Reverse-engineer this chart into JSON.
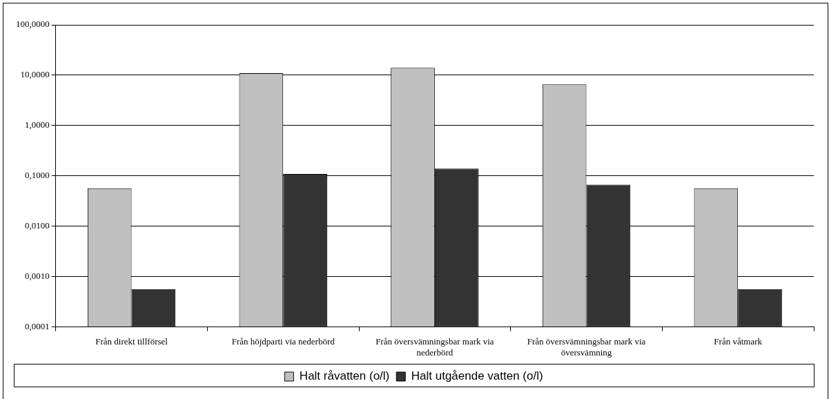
{
  "chart_data": {
    "type": "bar",
    "categories": [
      "Från direkt tillförsel",
      "Från höjdparti via nederbörd",
      "Från översvämningsbar mark via nederbörd",
      "Från översvämningsbar mark via översvämning",
      "Från våtmark"
    ],
    "series": [
      {
        "name": "Halt råvatten (o/l)",
        "color": "#c0c0c0",
        "values": [
          0.057,
          11,
          14,
          6.6,
          0.057
        ]
      },
      {
        "name": "Halt utgående vatten (o/l)",
        "color": "#333333",
        "values": [
          0.00057,
          0.11,
          0.14,
          0.067,
          0.00057
        ]
      }
    ],
    "log": "y",
    "ylim": [
      0.0001,
      100
    ],
    "yticks": [
      {
        "value": 0.0001,
        "label": "0,0001"
      },
      {
        "value": 0.001,
        "label": "0,0010"
      },
      {
        "value": 0.01,
        "label": "0,0100"
      },
      {
        "value": 0.1,
        "label": "0,1000"
      },
      {
        "value": 1,
        "label": "1,0000"
      },
      {
        "value": 10,
        "label": "10,0000"
      },
      {
        "value": 100,
        "label": "100,0000"
      }
    ],
    "grid": "y",
    "legend": "bottom"
  }
}
